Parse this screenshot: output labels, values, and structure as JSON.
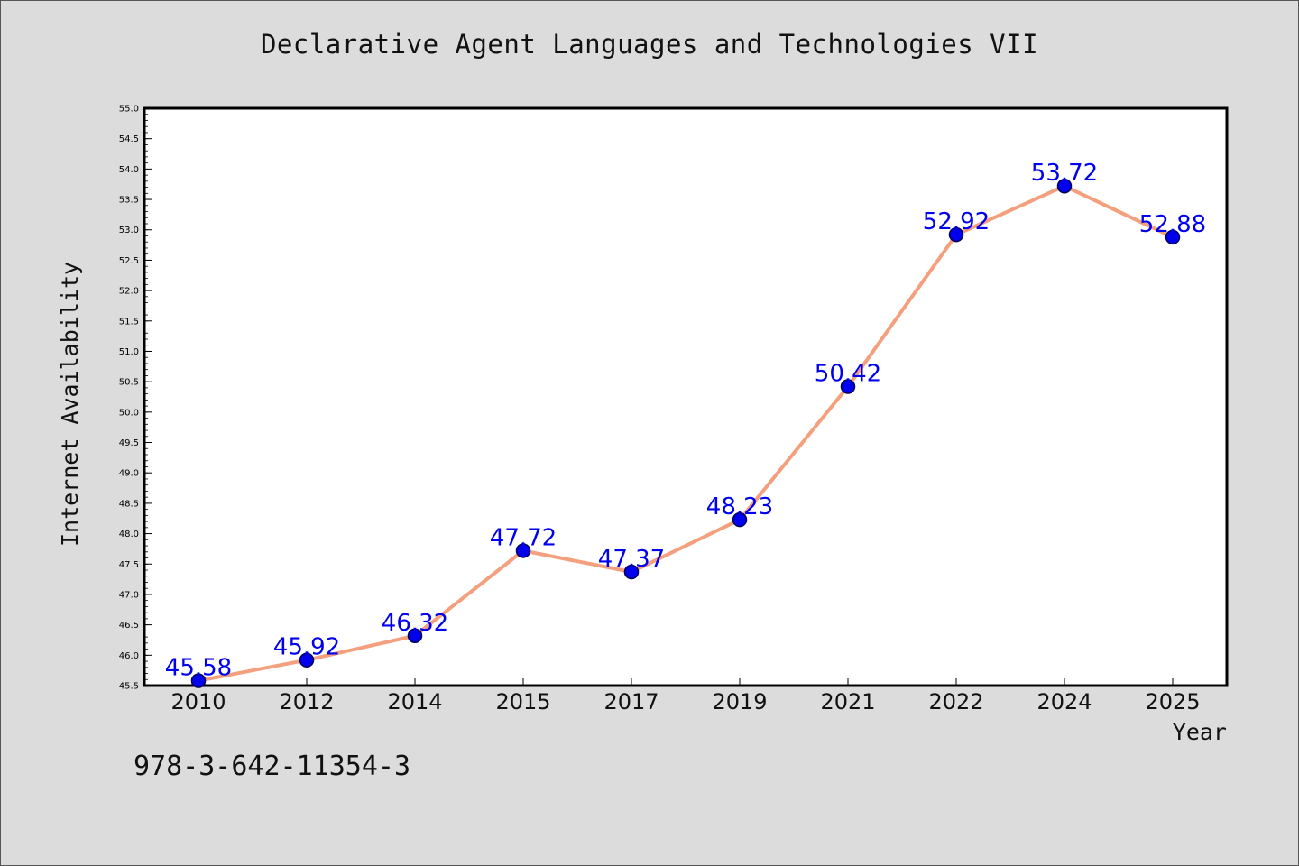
{
  "footer": {
    "isbn": "978-3-642-11354-3"
  },
  "chart_data": {
    "type": "line",
    "title": "Declarative Agent Languages and Technologies VII",
    "xlabel": "Year",
    "ylabel": "Internet Availability",
    "categories": [
      "2010",
      "2012",
      "2014",
      "2015",
      "2017",
      "2019",
      "2021",
      "2022",
      "2024",
      "2025"
    ],
    "series": [
      {
        "values": [
          45.58,
          45.92,
          46.32,
          47.72,
          47.37,
          48.23,
          50.42,
          52.92,
          53.72,
          52.88
        ],
        "data_labels": [
          "45.58",
          "45.92",
          "46.32",
          "47.72",
          "47.37",
          "48.23",
          "50.42",
          "52.92",
          "53.72",
          "52.88"
        ]
      }
    ],
    "ylim": [
      45.5,
      55.0
    ],
    "yticks": [
      "45.5",
      "46.0",
      "46.5",
      "47.0",
      "47.5",
      "48.0",
      "48.5",
      "49.0",
      "49.5",
      "50.0",
      "50.5",
      "51.0",
      "51.5",
      "52.0",
      "52.5",
      "53.0",
      "53.5",
      "54.0",
      "54.5",
      "55.0"
    ],
    "grid": false,
    "colors": {
      "line": "#f4a07e",
      "marker": "#0000ee",
      "marker_edge": "#000055",
      "data_label": "#0000ee",
      "plot_bg": "#ffffff",
      "figure_bg": "#dcdcdc"
    }
  }
}
